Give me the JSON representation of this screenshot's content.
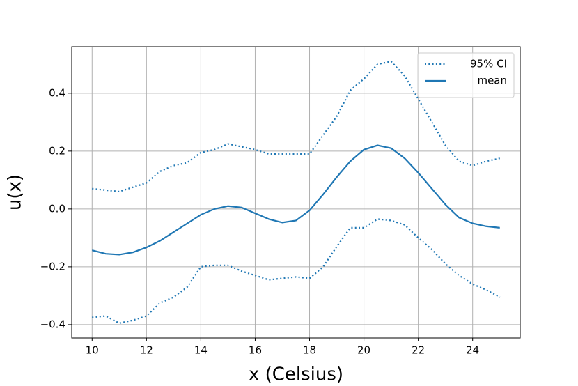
{
  "chart_data": {
    "type": "line",
    "xlabel": "x (Celsius)",
    "ylabel": "u(x)",
    "x": [
      10,
      10.5,
      11,
      11.5,
      12,
      12.5,
      13,
      13.5,
      14,
      14.5,
      15,
      15.5,
      16,
      16.5,
      17,
      17.5,
      18,
      18.5,
      19,
      19.5,
      20,
      20.5,
      21,
      21.5,
      22,
      22.5,
      23,
      23.5,
      24,
      24.5,
      25
    ],
    "series": [
      {
        "name": "95% CI",
        "color": "#1f77b4",
        "style": "dotted",
        "values": [
          0.07,
          0.065,
          0.06,
          0.075,
          0.09,
          0.13,
          0.15,
          0.16,
          0.195,
          0.205,
          0.225,
          0.215,
          0.205,
          0.19,
          0.19,
          0.19,
          0.19,
          0.255,
          0.32,
          0.41,
          0.45,
          0.5,
          0.51,
          0.46,
          0.38,
          0.3,
          0.22,
          0.165,
          0.15,
          0.165,
          0.175
        ]
      },
      {
        "name": "mean",
        "color": "#1f77b4",
        "style": "solid",
        "values": [
          -0.143,
          -0.155,
          -0.158,
          -0.15,
          -0.133,
          -0.11,
          -0.08,
          -0.05,
          -0.02,
          0.0,
          0.01,
          0.005,
          -0.015,
          -0.035,
          -0.047,
          -0.04,
          -0.005,
          0.05,
          0.11,
          0.165,
          0.205,
          0.22,
          0.21,
          0.175,
          0.125,
          0.07,
          0.015,
          -0.03,
          -0.05,
          -0.06,
          -0.065
        ]
      },
      {
        "color": "#1f77b4",
        "style": "dotted",
        "values": [
          -0.375,
          -0.37,
          -0.395,
          -0.385,
          -0.37,
          -0.325,
          -0.305,
          -0.27,
          -0.2,
          -0.195,
          -0.195,
          -0.215,
          -0.23,
          -0.245,
          -0.24,
          -0.235,
          -0.24,
          -0.2,
          -0.13,
          -0.065,
          -0.065,
          -0.035,
          -0.04,
          -0.055,
          -0.1,
          -0.14,
          -0.19,
          -0.23,
          -0.26,
          -0.28,
          -0.305
        ]
      }
    ],
    "xlim": [
      9.25,
      25.75
    ],
    "xticks": [
      10,
      12,
      14,
      16,
      18,
      20,
      22,
      24
    ],
    "ylim": [
      -0.446,
      0.561
    ],
    "yticks": [
      {
        "value": -0.4,
        "label": "−0.4"
      },
      {
        "value": -0.2,
        "label": "−0.2"
      },
      {
        "value": 0,
        "label": "0.0"
      },
      0.2,
      0.4
    ],
    "grid": true,
    "legend": "upper right"
  }
}
